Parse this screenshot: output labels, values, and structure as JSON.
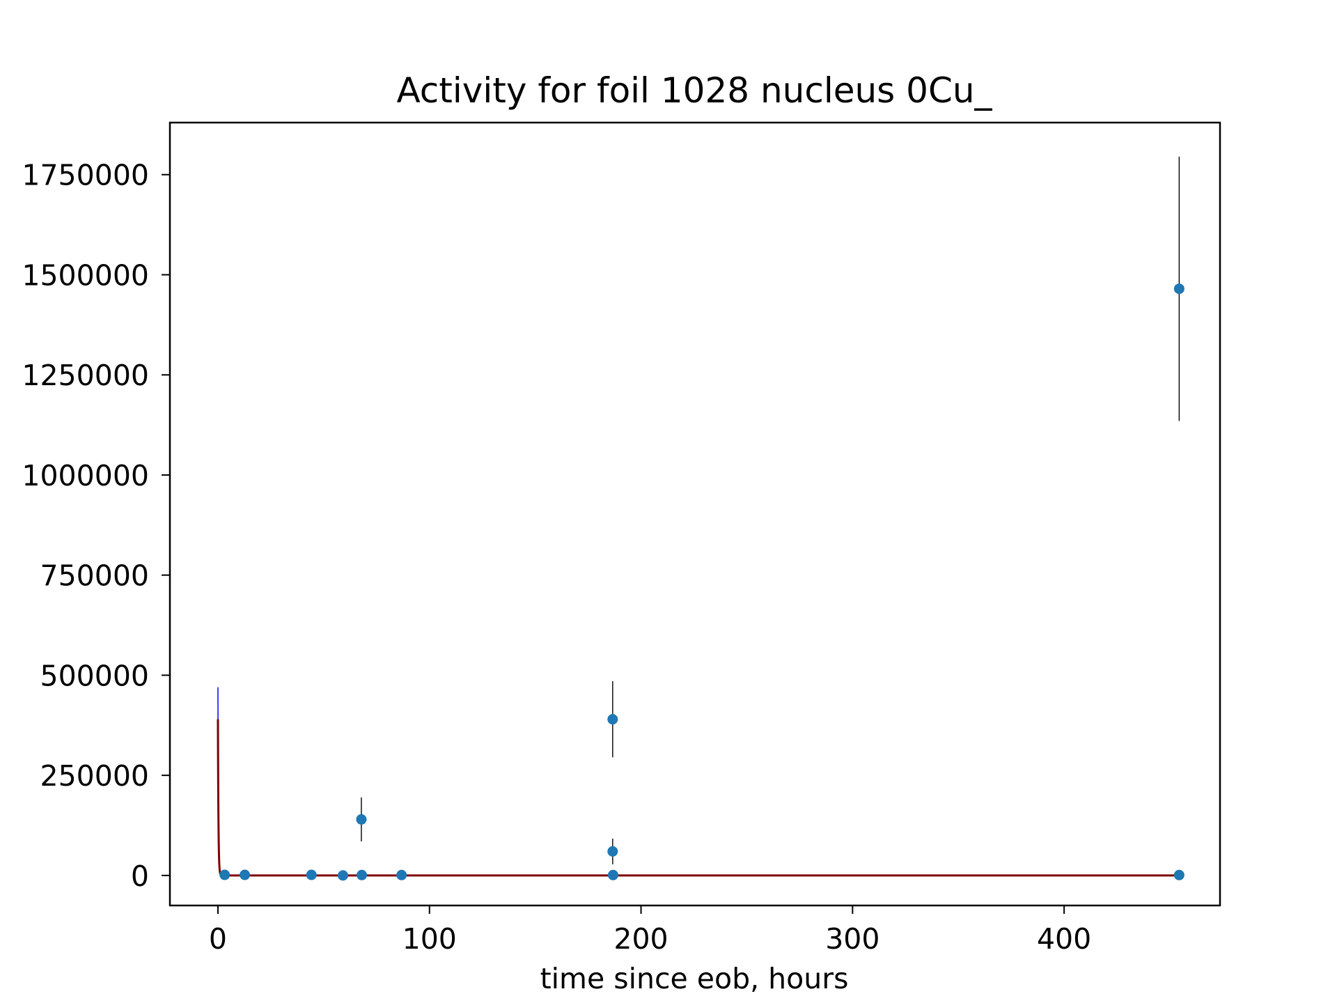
{
  "chart_data": {
    "type": "scatter",
    "title": "Activity for foil 1028 nucleus 0Cu_",
    "xlabel": "time since eob, hours",
    "ylabel": "",
    "xlim": [
      -22.7,
      473.7
    ],
    "ylim": [
      -75000,
      1880000
    ],
    "xticks": [
      {
        "value": 0,
        "label": "0"
      },
      {
        "value": 100,
        "label": "100"
      },
      {
        "value": 200,
        "label": "200"
      },
      {
        "value": 300,
        "label": "300"
      },
      {
        "value": 400,
        "label": "400"
      }
    ],
    "yticks": [
      {
        "value": 0,
        "label": "0"
      },
      {
        "value": 250000,
        "label": "250000"
      },
      {
        "value": 500000,
        "label": "500000"
      },
      {
        "value": 750000,
        "label": "750000"
      },
      {
        "value": 1000000,
        "label": "1000000"
      },
      {
        "value": 1250000,
        "label": "1250000"
      },
      {
        "value": 1500000,
        "label": "1500000"
      },
      {
        "value": 1750000,
        "label": "1750000"
      }
    ],
    "grid": false,
    "legend": "none",
    "series": [
      {
        "kind": "points_with_errorbars",
        "color": "#1f77b4",
        "errorbar_color": "#000000",
        "points": [
          {
            "x": 3.2,
            "y": 1500,
            "err": 0
          },
          {
            "x": 12.7,
            "y": 1500,
            "err": 0
          },
          {
            "x": 44.2,
            "y": 1500,
            "err": 0
          },
          {
            "x": 59.1,
            "y": 0,
            "err": 0
          },
          {
            "x": 67.8,
            "y": 140000,
            "err": 55000
          },
          {
            "x": 68.0,
            "y": 1000,
            "err": 0
          },
          {
            "x": 86.8,
            "y": 1000,
            "err": 0
          },
          {
            "x": 186.6,
            "y": 390000,
            "err": 95000
          },
          {
            "x": 186.6,
            "y": 60000,
            "err": 32000
          },
          {
            "x": 186.8,
            "y": 1000,
            "err": 0
          },
          {
            "x": 454.4,
            "y": 1465000,
            "err": 330000
          },
          {
            "x": 454.4,
            "y": 1000,
            "err": 0
          }
        ]
      },
      {
        "kind": "fit_curve_upper",
        "color": "#0000ff",
        "amplitude": 470000,
        "halflife_hours": 0.17
      },
      {
        "kind": "fit_curve_lower",
        "color": "#ff0000",
        "amplitude": 320000,
        "halflife_hours": 0.17
      },
      {
        "kind": "fit_curve_central",
        "color": "#7f0000",
        "amplitude": 390000,
        "halflife_hours": 0.17
      }
    ]
  }
}
